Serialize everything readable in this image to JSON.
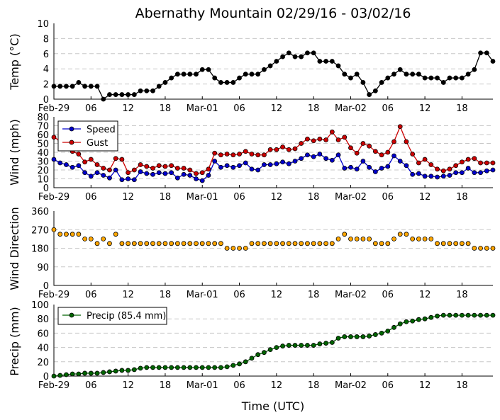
{
  "title": "Abernathy Mountain 02/29/16 - 03/02/16",
  "xlabel": "Time (UTC)",
  "x_tick_labels": [
    "Feb-29",
    "06",
    "12",
    "18",
    "Mar-01",
    "06",
    "12",
    "18",
    "Mar-02",
    "06",
    "12",
    "18"
  ],
  "x_tick_hours": [
    0,
    6,
    12,
    18,
    24,
    30,
    36,
    42,
    48,
    54,
    60,
    66
  ],
  "x_range_hours": [
    0,
    71
  ],
  "chart_data": [
    {
      "type": "line",
      "ylabel": "Temp ($^{\\circ}$C)",
      "ylabel_display": "Temp (°C)",
      "ylim": [
        0,
        10
      ],
      "yticks": [
        0,
        2,
        4,
        6,
        8,
        10
      ],
      "grid": true,
      "x_hours": [
        0,
        1,
        2,
        3,
        4,
        5,
        6,
        7,
        8,
        9,
        10,
        11,
        12,
        13,
        14,
        15,
        16,
        17,
        18,
        19,
        20,
        21,
        22,
        23,
        24,
        25,
        26,
        27,
        28,
        29,
        30,
        31,
        32,
        33,
        34,
        35,
        36,
        37,
        38,
        39,
        40,
        41,
        42,
        43,
        44,
        45,
        46,
        47,
        48,
        49,
        50,
        51,
        52,
        53,
        54,
        55,
        56,
        57,
        58,
        59,
        60,
        61,
        62,
        63,
        64,
        65,
        66,
        67,
        68,
        69,
        70,
        71
      ],
      "series": [
        {
          "color": "#000000",
          "values": [
            1.7,
            1.7,
            1.7,
            1.7,
            2.2,
            1.7,
            1.7,
            1.7,
            0.0,
            0.6,
            0.6,
            0.6,
            0.6,
            0.6,
            1.1,
            1.1,
            1.1,
            1.7,
            2.2,
            2.8,
            3.3,
            3.3,
            3.3,
            3.3,
            3.9,
            3.9,
            2.8,
            2.2,
            2.2,
            2.2,
            2.8,
            3.3,
            3.3,
            3.3,
            3.9,
            4.4,
            5.0,
            5.6,
            6.1,
            5.6,
            5.6,
            6.1,
            6.1,
            5.0,
            5.0,
            5.0,
            4.4,
            3.3,
            2.8,
            3.3,
            2.2,
            0.6,
            1.1,
            2.2,
            2.8,
            3.3,
            3.9,
            3.3,
            3.3,
            3.3,
            2.8,
            2.8,
            2.8,
            2.2,
            2.8,
            2.8,
            2.8,
            3.3,
            3.9,
            6.1,
            6.1,
            5.0
          ]
        }
      ]
    },
    {
      "type": "line",
      "ylabel": "Wind (mph)",
      "ylim": [
        0,
        80
      ],
      "yticks": [
        0,
        10,
        20,
        30,
        40,
        50,
        60,
        70,
        80
      ],
      "grid": true,
      "legend": {
        "placement": "top-left"
      },
      "x_hours": [
        0,
        1,
        2,
        3,
        4,
        5,
        6,
        7,
        8,
        9,
        10,
        11,
        12,
        13,
        14,
        15,
        16,
        17,
        18,
        19,
        20,
        21,
        22,
        23,
        24,
        25,
        26,
        27,
        28,
        29,
        30,
        31,
        32,
        33,
        34,
        35,
        36,
        37,
        38,
        39,
        40,
        41,
        42,
        43,
        44,
        45,
        46,
        47,
        48,
        49,
        50,
        51,
        52,
        53,
        54,
        55,
        56,
        57,
        58,
        59,
        60,
        61,
        62,
        63,
        64,
        65,
        66,
        67,
        68,
        69,
        70,
        71
      ],
      "series": [
        {
          "name": "Speed",
          "color": "#0000cc",
          "values": [
            32,
            28,
            26,
            23,
            25,
            17,
            13,
            17,
            14,
            11,
            20,
            9,
            10,
            9,
            18,
            16,
            15,
            17,
            16,
            17,
            11,
            15,
            14,
            10,
            8,
            14,
            30,
            23,
            25,
            23,
            25,
            28,
            21,
            20,
            26,
            26,
            27,
            29,
            27,
            30,
            33,
            37,
            35,
            38,
            33,
            31,
            37,
            22,
            23,
            21,
            30,
            23,
            18,
            22,
            24,
            36,
            30,
            25,
            15,
            16,
            13,
            13,
            12,
            13,
            14,
            17,
            17,
            22,
            17,
            17,
            19,
            20
          ]
        },
        {
          "name": "Gust",
          "color": "#cc0000",
          "values": [
            57,
            53,
            48,
            41,
            38,
            29,
            32,
            26,
            22,
            20,
            33,
            32,
            17,
            20,
            26,
            24,
            22,
            25,
            24,
            25,
            22,
            22,
            20,
            16,
            17,
            21,
            39,
            37,
            38,
            37,
            38,
            41,
            38,
            37,
            37,
            43,
            43,
            46,
            43,
            44,
            50,
            55,
            53,
            55,
            54,
            63,
            54,
            57,
            45,
            39,
            50,
            47,
            41,
            37,
            40,
            52,
            69,
            52,
            38,
            28,
            32,
            26,
            21,
            19,
            21,
            25,
            29,
            32,
            33,
            28,
            28,
            28
          ]
        }
      ]
    },
    {
      "type": "scatter",
      "ylabel": "Wind Direction",
      "ylim": [
        0,
        360
      ],
      "yticks": [
        0,
        90,
        180,
        270,
        360
      ],
      "grid": true,
      "x_hours": [
        0,
        1,
        2,
        3,
        4,
        5,
        6,
        7,
        8,
        9,
        10,
        11,
        12,
        13,
        14,
        15,
        16,
        17,
        18,
        19,
        20,
        21,
        22,
        23,
        24,
        25,
        26,
        27,
        28,
        29,
        30,
        31,
        32,
        33,
        34,
        35,
        36,
        37,
        38,
        39,
        40,
        41,
        42,
        43,
        44,
        45,
        46,
        47,
        48,
        49,
        50,
        51,
        52,
        53,
        54,
        55,
        56,
        57,
        58,
        59,
        60,
        61,
        62,
        63,
        64,
        65,
        66,
        67,
        68,
        69,
        70,
        71
      ],
      "series": [
        {
          "color": "#ffa500",
          "values": [
            270,
            248,
            248,
            248,
            248,
            225,
            225,
            203,
            225,
            203,
            248,
            203,
            203,
            203,
            203,
            203,
            203,
            203,
            203,
            203,
            203,
            203,
            203,
            203,
            203,
            203,
            203,
            203,
            180,
            180,
            180,
            180,
            203,
            203,
            203,
            203,
            203,
            203,
            203,
            203,
            203,
            203,
            203,
            203,
            203,
            203,
            225,
            248,
            225,
            225,
            225,
            225,
            203,
            203,
            203,
            225,
            248,
            248,
            225,
            225,
            225,
            225,
            203,
            203,
            203,
            203,
            203,
            203,
            180,
            180,
            180,
            180
          ]
        }
      ]
    },
    {
      "type": "line",
      "ylabel": "Precip (mm)",
      "ylim": [
        0,
        100
      ],
      "yticks": [
        0,
        20,
        40,
        60,
        80,
        100
      ],
      "grid": true,
      "legend": {
        "placement": "top-left"
      },
      "x_hours": [
        0,
        1,
        2,
        3,
        4,
        5,
        6,
        7,
        8,
        9,
        10,
        11,
        12,
        13,
        14,
        15,
        16,
        17,
        18,
        19,
        20,
        21,
        22,
        23,
        24,
        25,
        26,
        27,
        28,
        29,
        30,
        31,
        32,
        33,
        34,
        35,
        36,
        37,
        38,
        39,
        40,
        41,
        42,
        43,
        44,
        45,
        46,
        47,
        48,
        49,
        50,
        51,
        52,
        53,
        54,
        55,
        56,
        57,
        58,
        59,
        60,
        61,
        62,
        63,
        64,
        65,
        66,
        67,
        68,
        69,
        70,
        71
      ],
      "series": [
        {
          "name": "Precip (85.4 mm)",
          "color": "#006400",
          "values": [
            0,
            1,
            2,
            3,
            3,
            4,
            4,
            4,
            5,
            6,
            7,
            8,
            8,
            9,
            11,
            12,
            12,
            12,
            12,
            12,
            12,
            12,
            12,
            12,
            12,
            12,
            12,
            12,
            13,
            15,
            17,
            20,
            25,
            30,
            33,
            37,
            40,
            42,
            43,
            43,
            43,
            43,
            43,
            45,
            46,
            47,
            53,
            55,
            55,
            55,
            55,
            56,
            58,
            60,
            63,
            68,
            73,
            76,
            77,
            79,
            80,
            82,
            84,
            85,
            85,
            85,
            85,
            85,
            85,
            85,
            85,
            85
          ]
        }
      ]
    }
  ]
}
